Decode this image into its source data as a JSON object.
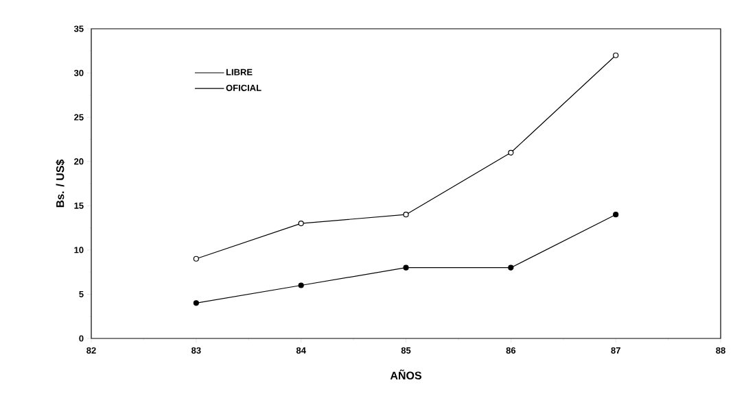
{
  "chart_data": {
    "type": "line",
    "xlabel": "AÑOS",
    "ylabel": "Bs. / US$",
    "x": [
      83,
      84,
      85,
      86,
      87
    ],
    "series": [
      {
        "name": "LIBRE",
        "color": "#000000",
        "values": [
          9,
          13,
          14,
          21,
          32
        ]
      },
      {
        "name": "OFICIAL",
        "color": "#000000",
        "values": [
          4,
          6,
          8,
          8,
          14
        ]
      }
    ],
    "xlim": [
      82,
      88
    ],
    "xticks": [
      82,
      83,
      84,
      85,
      86,
      87,
      88
    ],
    "ylim": [
      0,
      35
    ],
    "yticks": [
      0,
      5,
      10,
      15,
      20,
      25,
      30,
      35
    ],
    "grid": false,
    "legend": "top left",
    "marker": "circle",
    "line_style": "solid"
  }
}
